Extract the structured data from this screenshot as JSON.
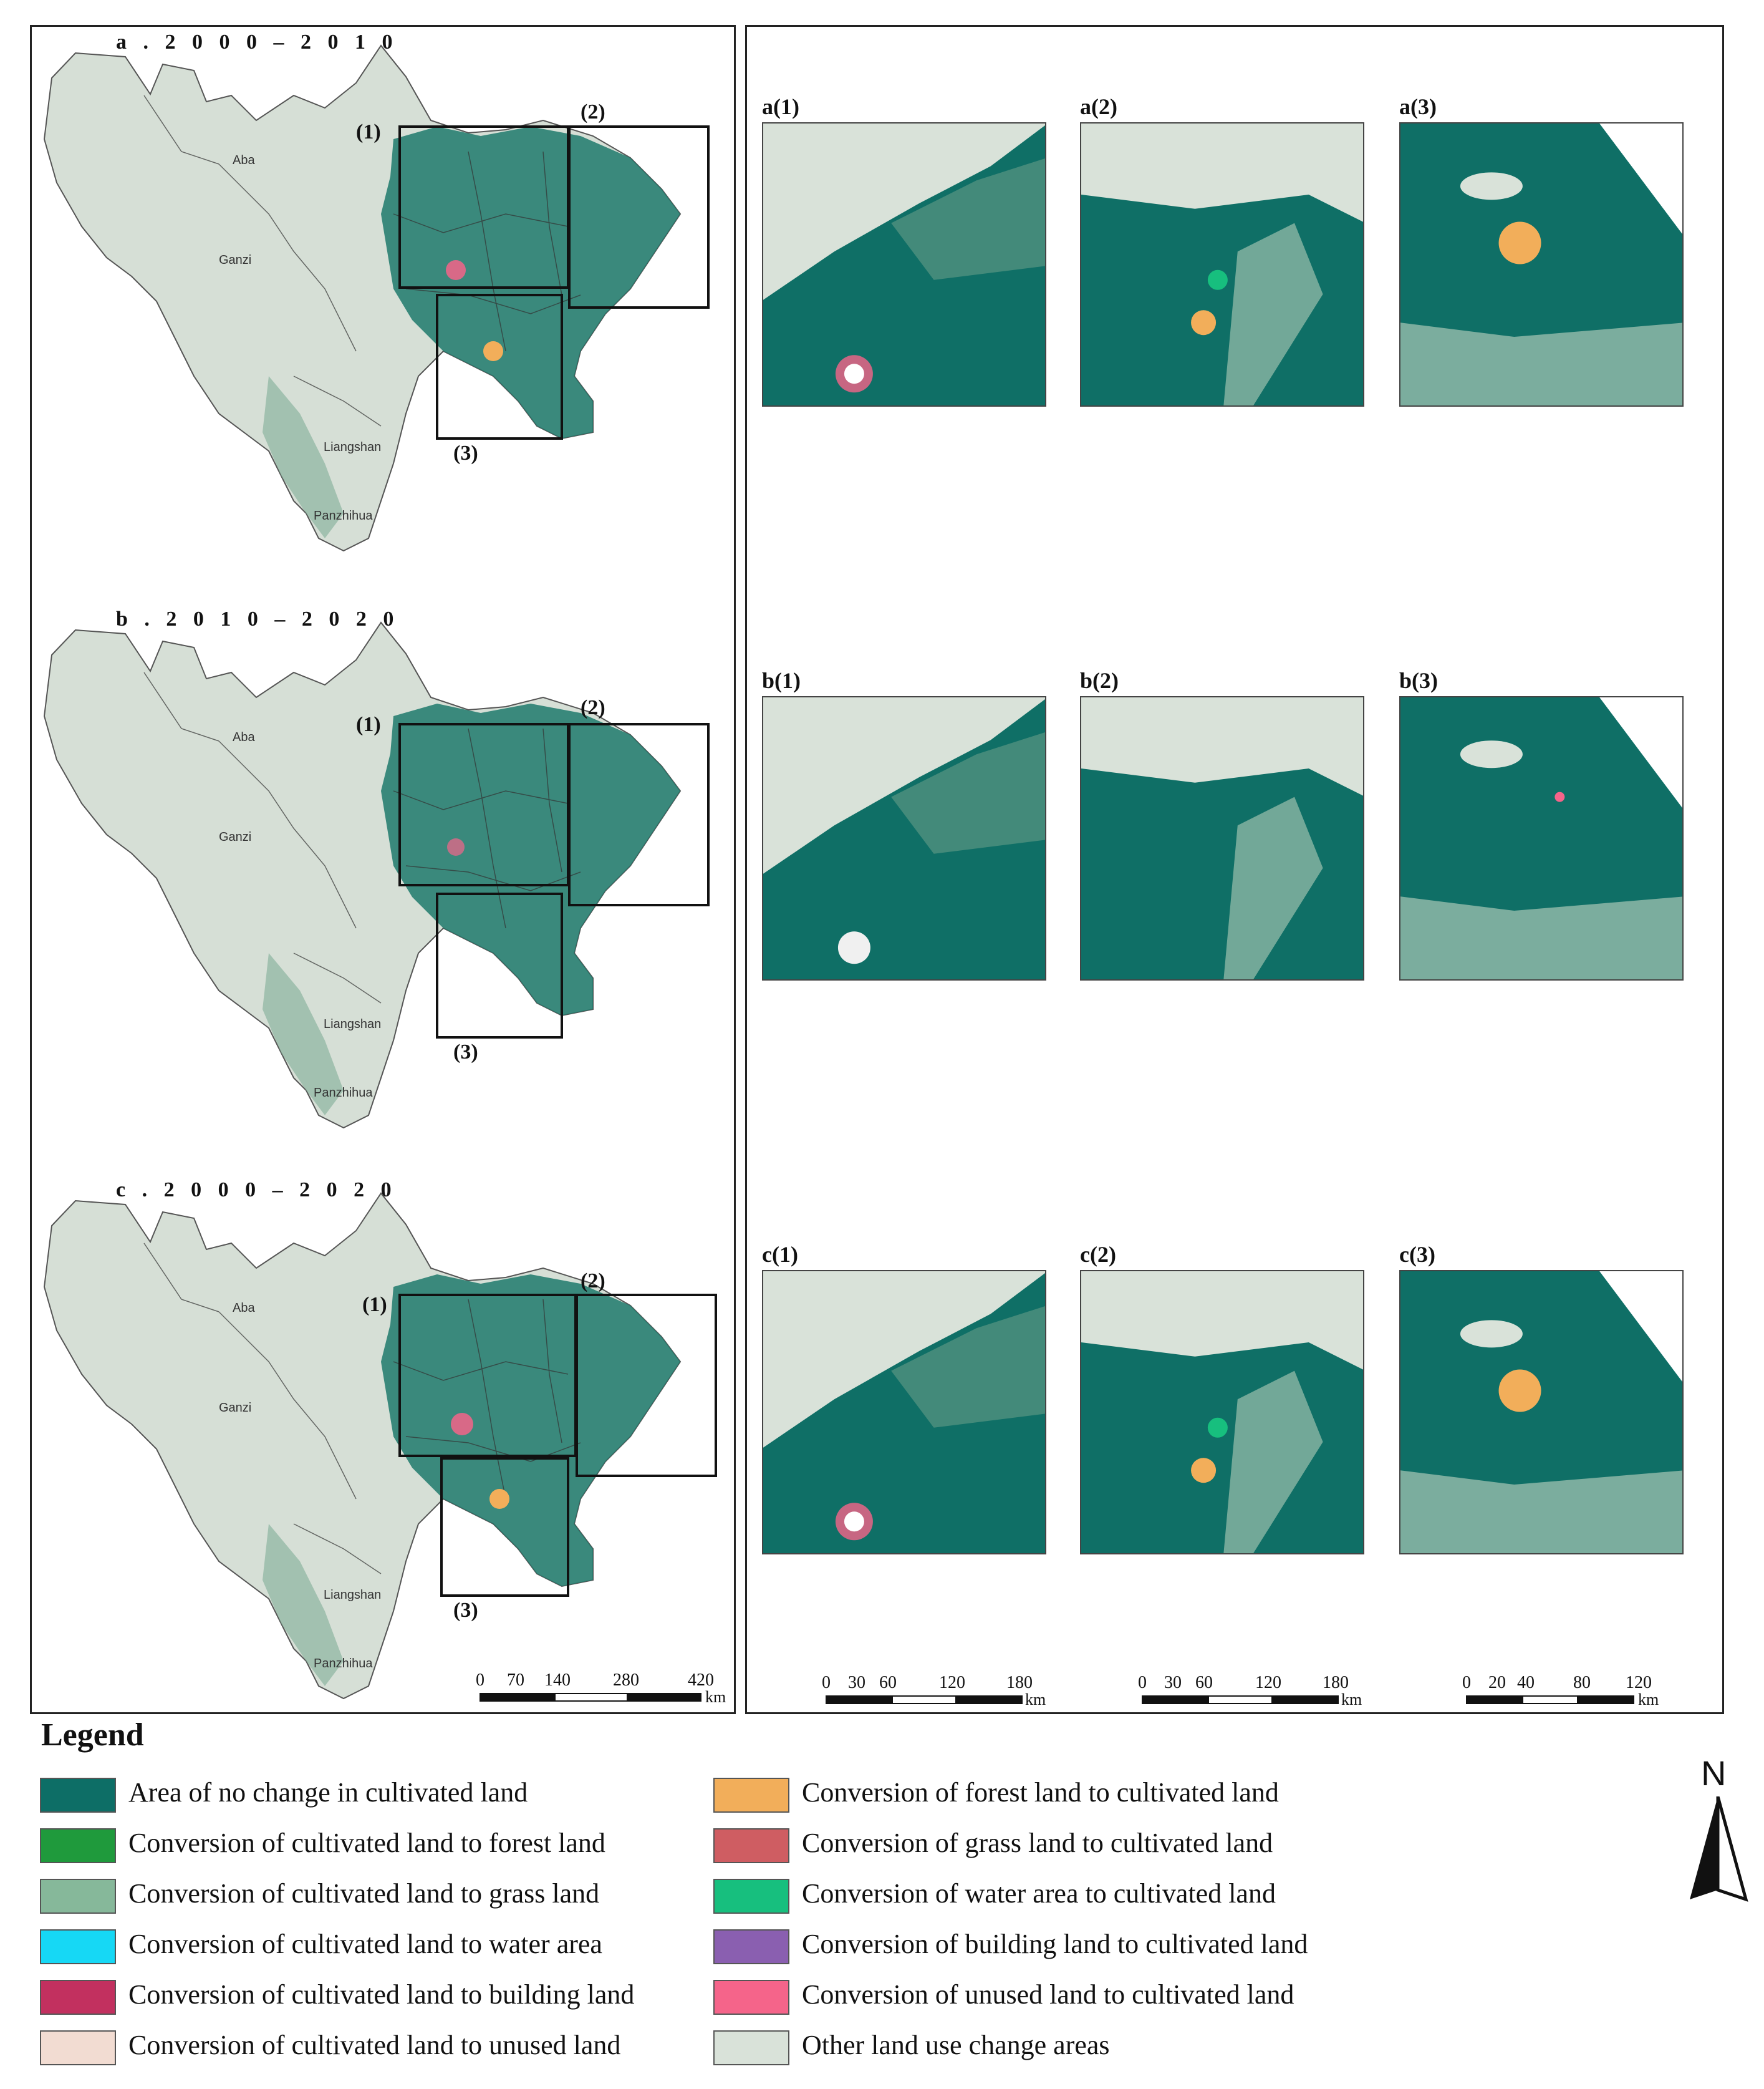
{
  "figure": {
    "overview_panels": [
      {
        "title": "a . 2 0 0 0 – 2 0 1 0",
        "box1": "(1)",
        "box2": "(2)",
        "box3": "(3)"
      },
      {
        "title": "b . 2 0 1 0 – 2 0 2 0",
        "box1": "(1)",
        "box2": "(2)",
        "box3": "(3)"
      },
      {
        "title": "c . 2 0 0 0 – 2 0 2 0",
        "box1": "(1)",
        "box2": "(2)",
        "box3": "(3)"
      }
    ],
    "insets": [
      [
        "a(1)",
        "a(2)",
        "a(3)"
      ],
      [
        "b(1)",
        "b(2)",
        "b(3)"
      ],
      [
        "c(1)",
        "c(2)",
        "c(3)"
      ]
    ],
    "scale_bars": {
      "overview": {
        "ticks": [
          "0",
          "70",
          "140",
          "280",
          "420"
        ],
        "unit": "km"
      },
      "inset1": {
        "ticks": [
          "0",
          "30",
          "60",
          "120",
          "180"
        ],
        "unit": "km"
      },
      "inset2": {
        "ticks": [
          "0",
          "30",
          "60",
          "120",
          "180"
        ],
        "unit": "km"
      },
      "inset3": {
        "ticks": [
          "0",
          "20",
          "40",
          "80",
          "120"
        ],
        "unit": "km"
      }
    },
    "north_arrow": "N",
    "place_labels": [
      "Aba",
      "Ganzi",
      "Liangshan",
      "Panzhihua"
    ]
  },
  "legend": {
    "title": "Legend",
    "left": [
      {
        "label": "Area of no change in cultivated land",
        "color": "#0d6e66"
      },
      {
        "label": "Conversion of cultivated land to forest land",
        "color": "#1f9a3c"
      },
      {
        "label": "Conversion of cultivated land to grass land",
        "color": "#86b89a"
      },
      {
        "label": "Conversion of cultivated land to water area",
        "color": "#16d8f5"
      },
      {
        "label": "Conversion of cultivated land to building land",
        "color": "#c2305f"
      },
      {
        "label": "Conversion of cultivated land to unused land",
        "color": "#f2dcd2"
      }
    ],
    "right": [
      {
        "label": "Conversion of forest land to cultivated land",
        "color": "#f2ae5a"
      },
      {
        "label": "Conversion of grass land to cultivated land",
        "color": "#cf5d62"
      },
      {
        "label": "Conversion of water area to cultivated land",
        "color": "#17bf7e"
      },
      {
        "label": "Conversion of  building land to cultivated land",
        "color": "#8a5fb0"
      },
      {
        "label": "Conversion of unused land to cultivated land",
        "color": "#f5648a"
      },
      {
        "label": "Other land use change areas",
        "color": "#d9e2d9"
      }
    ]
  }
}
